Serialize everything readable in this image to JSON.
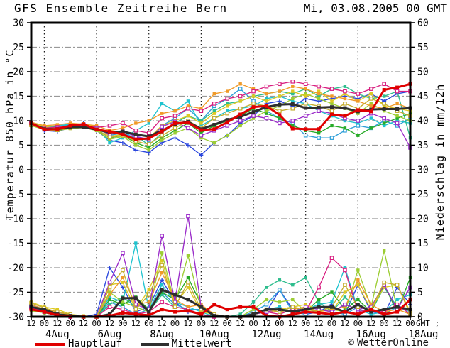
{
  "header": {
    "title": "GFS Ensemble Zeitreihe Bern",
    "datetime": "Mi, 03.08.2005 00 GMT"
  },
  "legend": {
    "items": [
      {
        "label": "Hauptlauf",
        "color": "#e00000"
      },
      {
        "label": "Mittelwert",
        "color": "#2e2e2e"
      }
    ],
    "credit_icon": "©",
    "credit": "WetterOnline"
  },
  "chart_data": {
    "type": "line",
    "title": "GFS Ensemble Zeitreihe Bern",
    "run_label": "Mi, 03.08.2005 00 GMT",
    "grid": {
      "horizontal_color": "#999999",
      "vertical_color": "#1a1a1a"
    },
    "y_left": {
      "label": "Temperatur 850 hPa in °C",
      "min": -30,
      "max": 30,
      "tick_step": 5,
      "ticks": [
        30,
        25,
        20,
        15,
        10,
        5,
        0,
        -5,
        -10,
        -15,
        -20,
        -25,
        -30
      ]
    },
    "y_right": {
      "label": "Niederschlag in mm/12h",
      "min": 0,
      "max": 60,
      "tick_step": 5,
      "ticks": [
        60,
        55,
        50,
        45,
        40,
        35,
        30,
        25,
        20,
        15,
        10,
        5,
        0
      ]
    },
    "x_axis": {
      "start": "03 Aug 2005 12:00 GMT",
      "end": "18 Aug 2005 00:00 GMT",
      "step_hours": 12,
      "tick_labels": [
        "12",
        "00",
        "12",
        "00",
        "12",
        "00",
        "12",
        "00",
        "12",
        "00",
        "12",
        "00",
        "12",
        "00",
        "12",
        "00",
        "12",
        "00",
        "12",
        "00",
        "12",
        "00",
        "12",
        "00",
        "12",
        "00",
        "12",
        "00",
        "12",
        "00"
      ],
      "gmt_label": "GMT ;",
      "day_labels": [
        {
          "label": "4Aug",
          "noon_index": 2
        },
        {
          "label": "6Aug",
          "noon_index": 6
        },
        {
          "label": "8Aug",
          "noon_index": 10
        },
        {
          "label": "10Aug",
          "noon_index": 14
        },
        {
          "label": "12Aug",
          "noon_index": 18
        },
        {
          "label": "14Aug",
          "noon_index": 22
        },
        {
          "label": "16Aug",
          "noon_index": 26
        },
        {
          "label": "18Aug",
          "noon_index": 30
        }
      ],
      "vertical_grid_indices": [
        1,
        5,
        9,
        13,
        17,
        21,
        25
      ]
    },
    "series": [
      {
        "name": "ensemble-1",
        "color": "#2a46dd",
        "marker": "plus",
        "temperature": [
          9.8,
          8.0,
          7.8,
          8.6,
          9.5,
          8.0,
          6.0,
          5.5,
          4.0,
          3.5,
          5.5,
          6.5,
          5.0,
          3.0,
          5.5,
          7.0,
          9.5,
          11.0,
          13.5,
          14.0,
          13.0,
          14.5,
          14.0,
          14.5,
          15.0,
          14.5,
          15.5,
          14.0,
          15.5,
          16.0
        ],
        "precipitation": [
          2.5,
          1.5,
          0.5,
          0,
          0,
          0.5,
          10.0,
          6.0,
          1.0,
          2.0,
          7.5,
          3.0,
          1.0,
          0.5,
          0,
          0,
          0,
          0.5,
          1.0,
          5.5,
          1.5,
          0.5,
          1.0,
          2.5,
          0.5,
          6.5,
          1.0,
          0.5,
          6.0,
          2.5
        ]
      },
      {
        "name": "ensemble-2",
        "color": "#2f9fd8",
        "marker": "square-open",
        "temperature": [
          9.3,
          8.5,
          8.8,
          9.2,
          9.0,
          8.5,
          7.0,
          7.5,
          6.5,
          6.0,
          9.0,
          10.5,
          12.5,
          10.0,
          13.0,
          14.5,
          16.5,
          14.0,
          12.0,
          10.5,
          9.5,
          7.0,
          6.5,
          6.5,
          8.0,
          9.0,
          8.5,
          10.0,
          9.0,
          10.5
        ],
        "precipitation": [
          2.0,
          1.0,
          0.5,
          0,
          0,
          0,
          3.0,
          2.0,
          0.5,
          1.5,
          5.0,
          2.5,
          1.5,
          1.5,
          0.2,
          0,
          0,
          1.0,
          2.5,
          5.5,
          1.0,
          0.5,
          1.5,
          1.0,
          0.5,
          2.0,
          1.5,
          0.5,
          2.0,
          1.0
        ]
      },
      {
        "name": "ensemble-3",
        "color": "#1fc3cf",
        "marker": "square-filled",
        "temperature": [
          9.5,
          8.7,
          9.0,
          9.3,
          9.2,
          8.6,
          5.5,
          6.5,
          8.0,
          9.5,
          13.5,
          12.0,
          14.0,
          9.0,
          10.5,
          12.0,
          12.5,
          13.0,
          14.5,
          15.0,
          14.0,
          13.5,
          12.0,
          11.0,
          10.0,
          9.5,
          10.5,
          9.0,
          10.0,
          9.5
        ],
        "precipitation": [
          2.2,
          1.2,
          0.5,
          0,
          0,
          0,
          4.0,
          3.0,
          15.0,
          1.5,
          6.5,
          3.0,
          2.0,
          1.0,
          0,
          0,
          0,
          0.5,
          1.5,
          2.0,
          1.0,
          1.5,
          2.5,
          3.0,
          10.0,
          1.5,
          0.5,
          1.0,
          3.5,
          4.5
        ]
      },
      {
        "name": "ensemble-4",
        "color": "#2dbd8d",
        "marker": "square-filled",
        "temperature": [
          9.4,
          8.6,
          8.8,
          9.0,
          9.0,
          8.4,
          7.5,
          8.0,
          7.0,
          5.0,
          7.5,
          9.5,
          11.0,
          10.0,
          12.0,
          13.5,
          14.0,
          15.0,
          15.5,
          16.0,
          15.5,
          16.5,
          15.0,
          16.5,
          17.0,
          15.5,
          14.5,
          15.0,
          16.0,
          6.5
        ],
        "precipitation": [
          1.8,
          1.0,
          0.3,
          0,
          0,
          0,
          2.5,
          4.0,
          2.0,
          1.0,
          4.5,
          2.0,
          1.5,
          0.5,
          0,
          0,
          0.5,
          3.0,
          6.0,
          7.5,
          6.5,
          8.0,
          3.0,
          1.0,
          4.0,
          1.5,
          1.0,
          6.0,
          2.0,
          1.5
        ]
      },
      {
        "name": "ensemble-5",
        "color": "#27ab27",
        "marker": "square-filled",
        "temperature": [
          9.2,
          8.4,
          8.6,
          8.8,
          8.9,
          8.3,
          6.5,
          7.0,
          5.5,
          4.5,
          6.5,
          8.0,
          9.5,
          7.5,
          9.0,
          10.0,
          11.0,
          12.5,
          11.5,
          10.5,
          9.0,
          8.0,
          7.5,
          9.0,
          8.5,
          7.0,
          8.5,
          9.5,
          10.5,
          11.5
        ],
        "precipitation": [
          1.5,
          0.8,
          0.3,
          0,
          0,
          0,
          3.5,
          2.5,
          4.0,
          1.5,
          5.0,
          3.5,
          8.0,
          2.5,
          0,
          0,
          0,
          0.5,
          1.0,
          1.5,
          2.0,
          1.0,
          3.5,
          5.0,
          1.5,
          3.5,
          1.0,
          6.5,
          1.0,
          8.0
        ]
      },
      {
        "name": "ensemble-6",
        "color": "#9ccd33",
        "marker": "square-filled",
        "temperature": [
          9.0,
          8.2,
          8.0,
          8.4,
          8.6,
          8.0,
          6.2,
          6.8,
          5.0,
          4.0,
          6.0,
          7.5,
          8.5,
          6.5,
          5.5,
          7.0,
          9.0,
          10.5,
          12.0,
          13.0,
          14.5,
          15.5,
          14.5,
          13.5,
          12.5,
          11.5,
          13.5,
          12.0,
          11.0,
          10.0
        ],
        "precipitation": [
          1.2,
          0.8,
          0.5,
          0.2,
          0,
          0,
          5.0,
          3.0,
          2.0,
          1.0,
          13.0,
          2.5,
          12.5,
          1.5,
          0.5,
          0,
          0,
          1.5,
          3.5,
          3.0,
          3.5,
          1.0,
          2.0,
          1.5,
          1.0,
          9.5,
          2.0,
          13.5,
          1.5,
          0.5
        ]
      },
      {
        "name": "ensemble-7",
        "color": "#ddc922",
        "marker": "square-filled",
        "temperature": [
          9.6,
          8.8,
          8.5,
          9.0,
          9.4,
          8.8,
          6.8,
          7.2,
          6.0,
          6.5,
          9.0,
          10.0,
          11.0,
          9.5,
          11.5,
          13.0,
          14.0,
          15.0,
          14.0,
          15.0,
          16.0,
          15.0,
          16.0,
          14.0,
          15.5,
          14.0,
          15.5,
          13.0,
          12.5,
          12.0
        ],
        "precipitation": [
          3.0,
          2.0,
          1.5,
          0.5,
          0.2,
          0,
          6.5,
          7.0,
          1.5,
          5.5,
          11.5,
          2.5,
          6.0,
          1.0,
          0.5,
          0,
          0,
          0.5,
          1.0,
          1.5,
          2.0,
          2.5,
          1.5,
          1.0,
          5.0,
          6.5,
          1.5,
          6.0,
          6.5,
          1.0
        ]
      },
      {
        "name": "ensemble-8",
        "color": "#f09a28",
        "marker": "square-filled",
        "temperature": [
          9.7,
          9.0,
          9.2,
          9.5,
          9.3,
          9.0,
          8.0,
          8.5,
          9.5,
          10.0,
          11.5,
          12.0,
          13.0,
          12.5,
          15.5,
          16.0,
          17.5,
          16.5,
          15.5,
          16.0,
          17.0,
          16.5,
          15.5,
          15.0,
          14.5,
          14.0,
          13.0,
          12.5,
          13.5,
          12.5
        ],
        "precipitation": [
          2.5,
          1.5,
          1.0,
          0.3,
          0,
          0,
          4.5,
          8.0,
          2.5,
          3.0,
          9.0,
          3.5,
          2.0,
          2.5,
          0.5,
          0,
          0,
          0.5,
          1.0,
          1.0,
          1.5,
          2.0,
          1.0,
          1.5,
          2.0,
          7.5,
          2.5,
          1.0,
          1.5,
          0.5
        ]
      },
      {
        "name": "ensemble-9",
        "color": "#d81f80",
        "marker": "square-open",
        "temperature": [
          9.3,
          8.5,
          8.7,
          9.0,
          9.1,
          8.6,
          9.0,
          9.5,
          8.0,
          7.5,
          10.5,
          11.0,
          12.5,
          12.0,
          13.5,
          14.5,
          15.0,
          16.0,
          17.0,
          17.5,
          18.0,
          17.5,
          17.0,
          16.5,
          16.0,
          15.5,
          16.5,
          17.5,
          16.0,
          16.0
        ],
        "precipitation": [
          1.8,
          1.0,
          0.5,
          0,
          0,
          0,
          2.0,
          1.5,
          0.5,
          1.0,
          3.0,
          2.0,
          1.5,
          0.5,
          0,
          0,
          0,
          0.5,
          1.0,
          0.5,
          1.5,
          1.0,
          6.0,
          12.0,
          9.5,
          1.0,
          1.5,
          1.0,
          2.5,
          0.5
        ]
      },
      {
        "name": "ensemble-10",
        "color": "#9a2bc9",
        "marker": "square-open",
        "temperature": [
          9.6,
          8.2,
          8.4,
          8.8,
          9.2,
          8.4,
          7.2,
          7.8,
          6.8,
          6.2,
          8.8,
          9.8,
          8.5,
          7.0,
          8.0,
          9.0,
          10.0,
          11.0,
          10.5,
          9.5,
          10.0,
          11.0,
          12.0,
          11.5,
          10.5,
          10.0,
          11.5,
          10.5,
          9.5,
          4.5
        ],
        "precipitation": [
          2.0,
          1.2,
          0.5,
          0,
          0,
          0,
          7.0,
          13.0,
          2.5,
          1.5,
          16.5,
          3.0,
          20.5,
          2.0,
          0.5,
          0,
          0,
          0.5,
          1.0,
          1.5,
          1.0,
          2.0,
          1.5,
          1.0,
          2.5,
          1.5,
          2.0,
          6.5,
          1.5,
          6.0
        ]
      },
      {
        "name": "ensemble-11",
        "color": "#c4ad2e",
        "marker": "square-open",
        "temperature": [
          9.1,
          8.3,
          8.1,
          8.5,
          8.8,
          8.2,
          6.6,
          7.0,
          5.8,
          5.2,
          7.0,
          8.5,
          10.0,
          8.5,
          10.5,
          11.5,
          12.5,
          13.5,
          13.0,
          12.0,
          12.5,
          13.5,
          13.0,
          12.0,
          13.5,
          12.5,
          14.5,
          13.5,
          12.0,
          11.0
        ],
        "precipitation": [
          2.8,
          1.8,
          1.0,
          0.5,
          0,
          0,
          6.0,
          9.5,
          1.5,
          4.5,
          10.5,
          2.0,
          7.0,
          1.5,
          0.5,
          0,
          0,
          0.5,
          1.5,
          1.0,
          2.0,
          1.5,
          1.0,
          2.0,
          6.5,
          2.0,
          1.5,
          7.0,
          6.5,
          0.5
        ]
      },
      {
        "name": "Mittelwert",
        "color": "#2e2e2e",
        "marker": "square-filled",
        "thick": true,
        "temperature": [
          9.5,
          8.3,
          8.3,
          8.7,
          8.7,
          8.2,
          7.6,
          7.8,
          7.2,
          6.8,
          8.0,
          9.3,
          9.8,
          8.3,
          9.2,
          10.2,
          10.8,
          11.8,
          12.8,
          13.3,
          13.4,
          12.6,
          12.7,
          12.8,
          12.6,
          11.9,
          12.3,
          12.4,
          12.4,
          12.6
        ],
        "precipitation": [
          2.0,
          1.5,
          0.5,
          0.2,
          0,
          0,
          0.5,
          3.8,
          3.8,
          1.0,
          5.5,
          4.5,
          3.5,
          2.0,
          0.2,
          0,
          0,
          0.5,
          1.5,
          1.5,
          1.0,
          1.5,
          2.0,
          2.0,
          1.0,
          2.5,
          1.0,
          1.5,
          2.0,
          1.5
        ]
      },
      {
        "name": "Hauptlauf",
        "color": "#e00000",
        "marker": "square-filled",
        "thick": true,
        "temperature": [
          9.5,
          8.2,
          8.3,
          9.0,
          9.3,
          8.2,
          7.8,
          7.2,
          6.2,
          6.4,
          7.8,
          9.5,
          9.6,
          8.1,
          8.3,
          9.7,
          11.3,
          12.8,
          13.0,
          11.2,
          8.4,
          8.3,
          8.3,
          11.3,
          11.0,
          12.2,
          11.9,
          16.3,
          16.8,
          17.5
        ],
        "precipitation": [
          1.5,
          1.0,
          0.3,
          0,
          0,
          0,
          0.2,
          0.8,
          0.5,
          0.3,
          1.5,
          1.0,
          1.2,
          0.5,
          2.5,
          1.5,
          2.0,
          2.0,
          0.2,
          0,
          0.5,
          1.0,
          0.8,
          0.5,
          1.0,
          0.5,
          1.5,
          0.5,
          1.0,
          3.5
        ]
      }
    ]
  }
}
